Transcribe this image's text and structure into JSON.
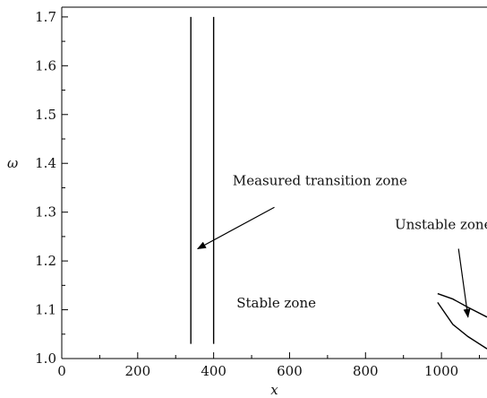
{
  "chart_data": {
    "type": "line",
    "title": "",
    "xlabel": "x",
    "ylabel": "ω",
    "xlim": [
      0,
      1120
    ],
    "ylim": [
      1.0,
      1.72
    ],
    "xticks": [
      0,
      200,
      400,
      600,
      800,
      1000
    ],
    "yticks": [
      1.0,
      1.1,
      1.2,
      1.3,
      1.4,
      1.5,
      1.6,
      1.7
    ],
    "xtick_labels": [
      "0",
      "200",
      "400",
      "600",
      "800",
      "1000"
    ],
    "ytick_labels": [
      "1.0",
      "1.1",
      "1.2",
      "1.3",
      "1.4",
      "1.5",
      "1.6",
      "1.7"
    ],
    "grid": false,
    "legend": "none",
    "series": [
      {
        "x": [
          340,
          340
        ],
        "y": [
          1.03,
          1.7
        ]
      },
      {
        "x": [
          400,
          400
        ],
        "y": [
          1.03,
          1.7
        ]
      },
      {
        "x": [
          990,
          1030,
          1070,
          1120
        ],
        "y": [
          1.133,
          1.122,
          1.105,
          1.085
        ]
      },
      {
        "x": [
          990,
          1030,
          1070,
          1120
        ],
        "y": [
          1.115,
          1.07,
          1.045,
          1.02
        ]
      }
    ],
    "annotations": [
      {
        "text": "Measured transition zone",
        "x": 680,
        "y": 1.355,
        "arrow_from": [
          560,
          1.31
        ],
        "arrow_to": [
          358,
          1.225
        ]
      },
      {
        "text": "Unstable zone",
        "x": 1005,
        "y": 1.265,
        "arrow_from": [
          1045,
          1.225
        ],
        "arrow_to": [
          1070,
          1.085
        ]
      },
      {
        "text": "Stable zone",
        "x": 565,
        "y": 1.105
      }
    ],
    "line_color": "#000000"
  }
}
